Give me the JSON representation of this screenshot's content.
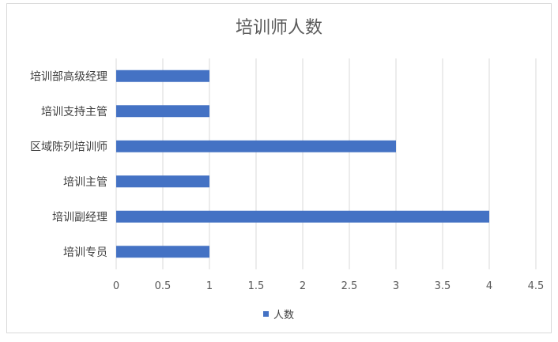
{
  "chart_data": {
    "type": "bar",
    "orientation": "horizontal",
    "title": "培训师人数",
    "categories": [
      "培训部高级经理",
      "培训支持主管",
      "区域陈列培训师",
      "培训主管",
      "培训副经理",
      "培训专员"
    ],
    "series": [
      {
        "name": "人数",
        "values": [
          1,
          1,
          3,
          1,
          4,
          1
        ],
        "color": "#4472c4"
      }
    ],
    "xlim": [
      0,
      4.5
    ],
    "xticks": [
      "0",
      "0.5",
      "1",
      "1.5",
      "2",
      "2.5",
      "3",
      "3.5",
      "4",
      "4.5"
    ],
    "grid": true,
    "legend": "bottom"
  }
}
